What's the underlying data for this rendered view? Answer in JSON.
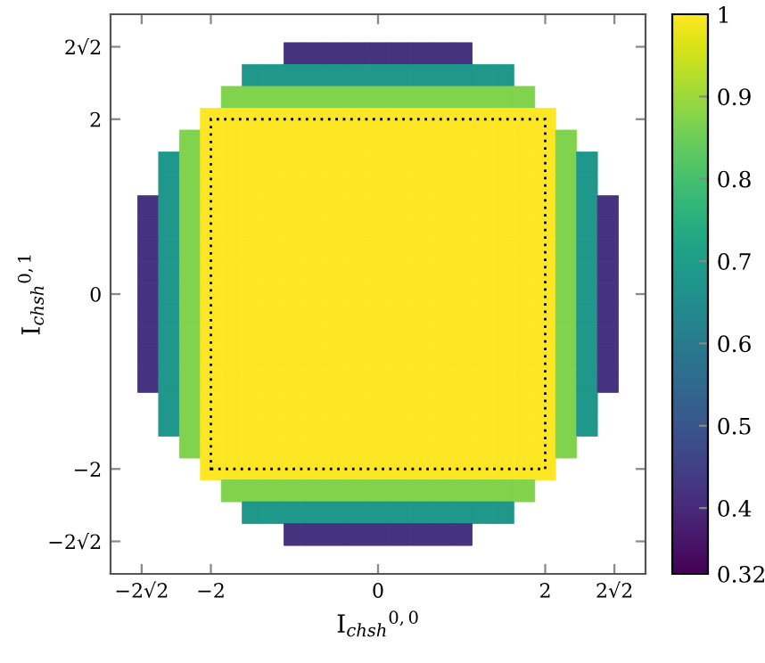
{
  "chart_data": {
    "type": "heatmap",
    "xlabel": "I$_{chsh}$$^{0,0}$",
    "ylabel": "I$_{chsh}$$^{0,1}$",
    "x": [
      -2.75,
      -2.5,
      -2.25,
      -2,
      -1.75,
      -1.5,
      -1.25,
      -1,
      -0.75,
      -0.5,
      -0.25,
      0,
      0.25,
      0.5,
      0.75,
      1,
      1.25,
      1.5,
      1.75,
      2,
      2.25,
      2.5,
      2.75
    ],
    "y": [
      2.75,
      2.5,
      2.25,
      2,
      1.75,
      1.5,
      1.25,
      1,
      0.75,
      0.5,
      0.25,
      0,
      -0.25,
      -0.5,
      -0.75,
      -1,
      -1.25,
      -1.5,
      -1.75,
      -2,
      -2.25,
      -2.5,
      -2.75
    ],
    "cells": [
      [
        null,
        null,
        null,
        null,
        null,
        null,
        null,
        0.42,
        0.42,
        0.42,
        0.42,
        0.42,
        0.42,
        0.42,
        0.42,
        0.42,
        null,
        null,
        null,
        null,
        null,
        null,
        null
      ],
      [
        null,
        null,
        null,
        null,
        null,
        0.68,
        0.68,
        0.68,
        0.68,
        0.68,
        0.68,
        0.68,
        0.68,
        0.68,
        0.68,
        0.68,
        0.68,
        0.68,
        null,
        null,
        null,
        null,
        null
      ],
      [
        null,
        null,
        null,
        null,
        0.87,
        0.87,
        0.87,
        0.87,
        0.87,
        0.87,
        0.87,
        0.87,
        0.87,
        0.87,
        0.87,
        0.87,
        0.87,
        0.87,
        0.87,
        null,
        null,
        null,
        null
      ],
      [
        null,
        null,
        null,
        1,
        1,
        1,
        1,
        1,
        1,
        1,
        1,
        1,
        1,
        1,
        1,
        1,
        1,
        1,
        1,
        1,
        null,
        null,
        null
      ],
      [
        null,
        null,
        0.87,
        1,
        1,
        1,
        1,
        1,
        1,
        1,
        1,
        1,
        1,
        1,
        1,
        1,
        1,
        1,
        1,
        1,
        0.87,
        null,
        null
      ],
      [
        null,
        0.68,
        0.87,
        1,
        1,
        1,
        1,
        1,
        1,
        1,
        1,
        1,
        1,
        1,
        1,
        1,
        1,
        1,
        1,
        1,
        0.87,
        0.68,
        null
      ],
      [
        null,
        0.68,
        0.87,
        1,
        1,
        1,
        1,
        1,
        1,
        1,
        1,
        1,
        1,
        1,
        1,
        1,
        1,
        1,
        1,
        1,
        0.87,
        0.68,
        null
      ],
      [
        0.42,
        0.68,
        0.87,
        1,
        1,
        1,
        1,
        1,
        1,
        1,
        1,
        1,
        1,
        1,
        1,
        1,
        1,
        1,
        1,
        1,
        0.87,
        0.68,
        0.42
      ],
      [
        0.42,
        0.68,
        0.87,
        1,
        1,
        1,
        1,
        1,
        1,
        1,
        1,
        1,
        1,
        1,
        1,
        1,
        1,
        1,
        1,
        1,
        0.87,
        0.68,
        0.42
      ],
      [
        0.42,
        0.68,
        0.87,
        1,
        1,
        1,
        1,
        1,
        1,
        1,
        1,
        1,
        1,
        1,
        1,
        1,
        1,
        1,
        1,
        1,
        0.87,
        0.68,
        0.42
      ],
      [
        0.42,
        0.68,
        0.87,
        1,
        1,
        1,
        1,
        1,
        1,
        1,
        1,
        1,
        1,
        1,
        1,
        1,
        1,
        1,
        1,
        1,
        0.87,
        0.68,
        0.42
      ],
      [
        0.42,
        0.68,
        0.87,
        1,
        1,
        1,
        1,
        1,
        1,
        1,
        1,
        1,
        1,
        1,
        1,
        1,
        1,
        1,
        1,
        1,
        0.87,
        0.68,
        0.42
      ],
      [
        0.42,
        0.68,
        0.87,
        1,
        1,
        1,
        1,
        1,
        1,
        1,
        1,
        1,
        1,
        1,
        1,
        1,
        1,
        1,
        1,
        1,
        0.87,
        0.68,
        0.42
      ],
      [
        0.42,
        0.68,
        0.87,
        1,
        1,
        1,
        1,
        1,
        1,
        1,
        1,
        1,
        1,
        1,
        1,
        1,
        1,
        1,
        1,
        1,
        0.87,
        0.68,
        0.42
      ],
      [
        0.42,
        0.68,
        0.87,
        1,
        1,
        1,
        1,
        1,
        1,
        1,
        1,
        1,
        1,
        1,
        1,
        1,
        1,
        1,
        1,
        1,
        0.87,
        0.68,
        0.42
      ],
      [
        0.42,
        0.68,
        0.87,
        1,
        1,
        1,
        1,
        1,
        1,
        1,
        1,
        1,
        1,
        1,
        1,
        1,
        1,
        1,
        1,
        1,
        0.87,
        0.68,
        0.42
      ],
      [
        null,
        0.68,
        0.87,
        1,
        1,
        1,
        1,
        1,
        1,
        1,
        1,
        1,
        1,
        1,
        1,
        1,
        1,
        1,
        1,
        1,
        0.87,
        0.68,
        null
      ],
      [
        null,
        0.68,
        0.87,
        1,
        1,
        1,
        1,
        1,
        1,
        1,
        1,
        1,
        1,
        1,
        1,
        1,
        1,
        1,
        1,
        1,
        0.87,
        0.68,
        null
      ],
      [
        null,
        null,
        0.87,
        1,
        1,
        1,
        1,
        1,
        1,
        1,
        1,
        1,
        1,
        1,
        1,
        1,
        1,
        1,
        1,
        1,
        0.87,
        null,
        null
      ],
      [
        null,
        null,
        null,
        1,
        1,
        1,
        1,
        1,
        1,
        1,
        1,
        1,
        1,
        1,
        1,
        1,
        1,
        1,
        1,
        1,
        null,
        null,
        null
      ],
      [
        null,
        null,
        null,
        null,
        0.87,
        0.87,
        0.87,
        0.87,
        0.87,
        0.87,
        0.87,
        0.87,
        0.87,
        0.87,
        0.87,
        0.87,
        0.87,
        0.87,
        0.87,
        null,
        null,
        null,
        null
      ],
      [
        null,
        null,
        null,
        null,
        null,
        0.68,
        0.68,
        0.68,
        0.68,
        0.68,
        0.68,
        0.68,
        0.68,
        0.68,
        0.68,
        0.68,
        0.68,
        0.68,
        null,
        null,
        null,
        null,
        null
      ],
      [
        null,
        null,
        null,
        null,
        null,
        null,
        null,
        0.42,
        0.42,
        0.42,
        0.42,
        0.42,
        0.42,
        0.42,
        0.42,
        0.42,
        null,
        null,
        null,
        null,
        null,
        null,
        null
      ]
    ],
    "xlim": [
      -3.2,
      3.2
    ],
    "ylim": [
      -3.2,
      3.2
    ],
    "xticks": [
      {
        "value": -2.828,
        "label": "−2√2"
      },
      {
        "value": -2,
        "label": "−2"
      },
      0,
      2,
      {
        "value": 2.828,
        "label": "2√2"
      }
    ],
    "yticks": [
      {
        "value": -2.828,
        "label": "−2√2"
      },
      {
        "value": -2,
        "label": "−2"
      },
      0,
      2,
      {
        "value": 2.828,
        "label": "2√2"
      }
    ],
    "clim": [
      0.32,
      1
    ],
    "cticks": [
      0.32,
      0.4,
      0.5,
      0.6,
      0.7,
      0.8,
      0.9,
      1
    ],
    "grid": false
  }
}
